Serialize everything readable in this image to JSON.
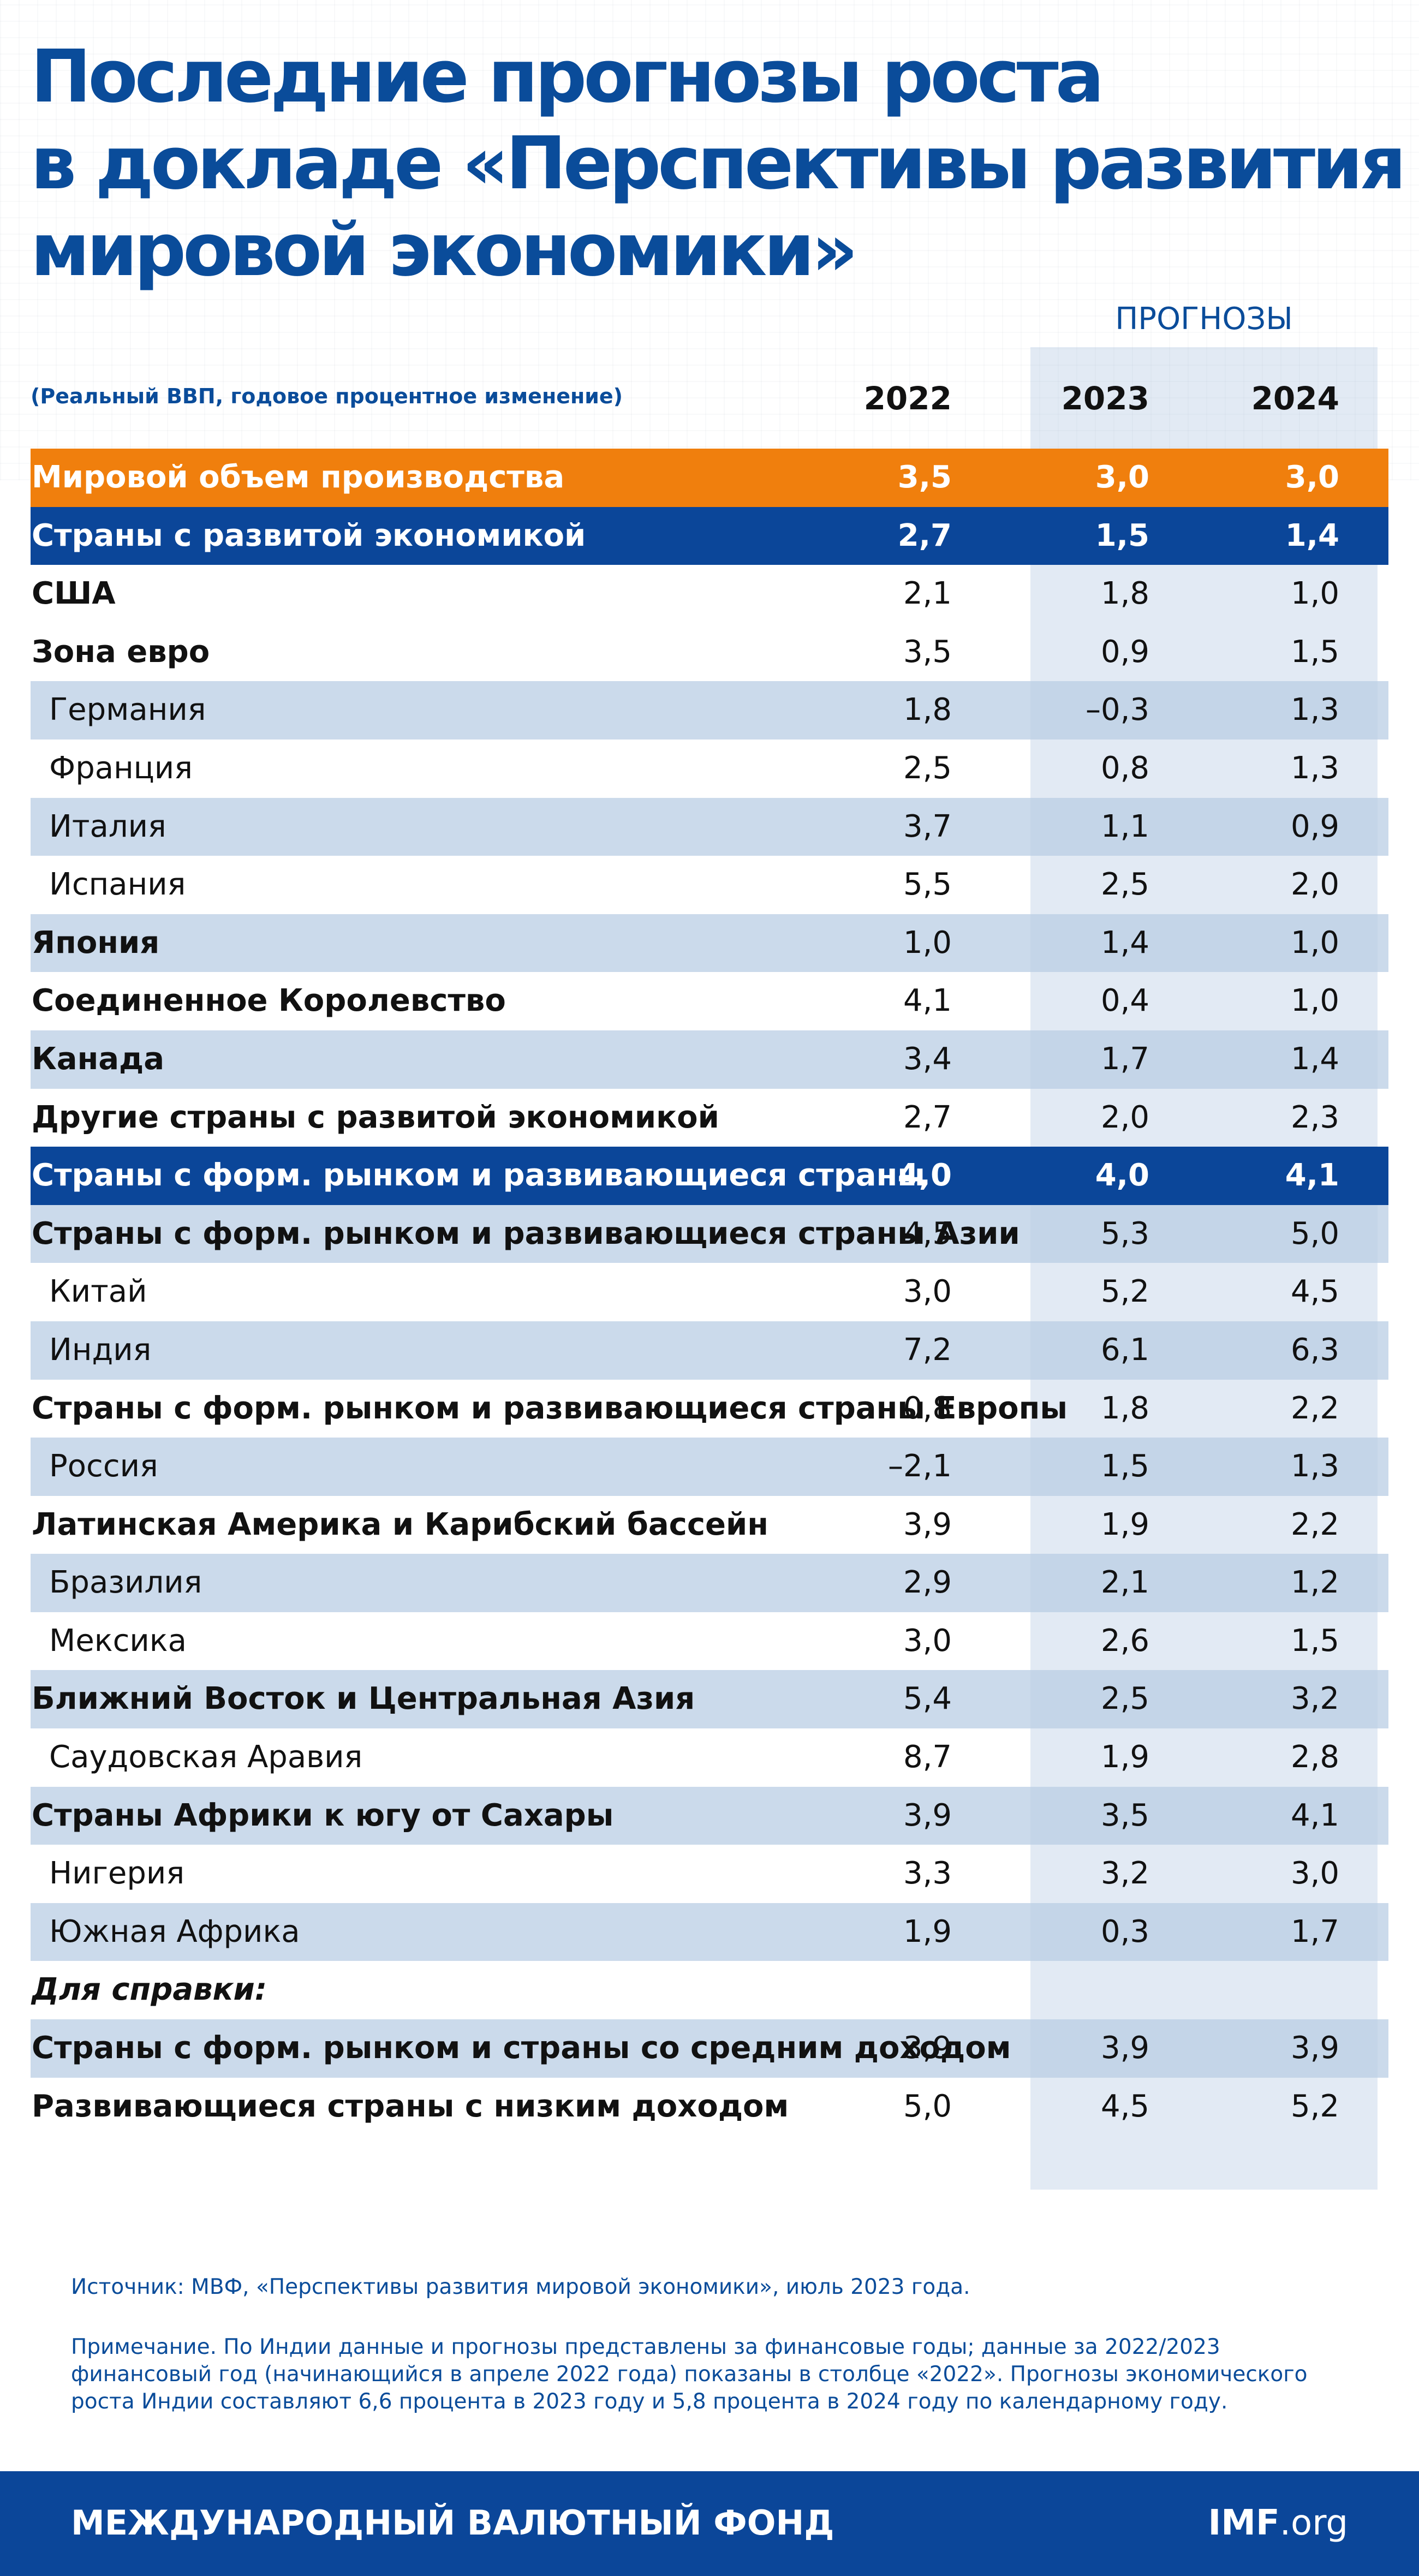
{
  "title_lines": [
    "Последние прогнозы роста",
    "в докладе «Перспективы развития",
    "мировой экономики»"
  ],
  "forecast_label": "ПРОГНОЗЫ",
  "subheading": "(Реальный ВВП, годовое процентное изменение)",
  "years": [
    "2022",
    "2023",
    "2024"
  ],
  "rows": [
    {
      "name": "Мировой объем производства",
      "v": [
        "3,5",
        "3,0",
        "3,0"
      ]
    },
    {
      "name": "Страны с развитой экономикой",
      "v": [
        "2,7",
        "1,5",
        "1,4"
      ]
    },
    {
      "name": "США",
      "v": [
        "2,1",
        "1,8",
        "1,0"
      ]
    },
    {
      "name": "Зона евро",
      "v": [
        "3,5",
        "0,9",
        "1,5"
      ]
    },
    {
      "name": "Германия",
      "v": [
        "1,8",
        "–0,3",
        "1,3"
      ]
    },
    {
      "name": "Франция",
      "v": [
        "2,5",
        "0,8",
        "1,3"
      ]
    },
    {
      "name": "Италия",
      "v": [
        "3,7",
        "1,1",
        "0,9"
      ]
    },
    {
      "name": "Испания",
      "v": [
        "5,5",
        "2,5",
        "2,0"
      ]
    },
    {
      "name": "Япония",
      "v": [
        "1,0",
        "1,4",
        "1,0"
      ]
    },
    {
      "name": "Соединенное Королевство",
      "v": [
        "4,1",
        "0,4",
        "1,0"
      ]
    },
    {
      "name": "Канада",
      "v": [
        "3,4",
        "1,7",
        "1,4"
      ]
    },
    {
      "name": "Другие страны с развитой экономикой",
      "v": [
        "2,7",
        "2,0",
        "2,3"
      ]
    },
    {
      "name": "Страны с форм. рынком и развивающиеся страны",
      "v": [
        "4,0",
        "4,0",
        "4,1"
      ]
    },
    {
      "name": "Страны с форм. рынком и развивающиеся страны Азии",
      "v": [
        "4,5",
        "5,3",
        "5,0"
      ]
    },
    {
      "name": "Китай",
      "v": [
        "3,0",
        "5,2",
        "4,5"
      ]
    },
    {
      "name": "Индия",
      "v": [
        "7,2",
        "6,1",
        "6,3"
      ]
    },
    {
      "name": "Страны с форм. рынком и развивающиеся страны Европы",
      "v": [
        "0,8",
        "1,8",
        "2,2"
      ]
    },
    {
      "name": "Россия",
      "v": [
        "–2,1",
        "1,5",
        "1,3"
      ]
    },
    {
      "name": "Латинская Америка и Карибский бассейн",
      "v": [
        "3,9",
        "1,9",
        "2,2"
      ]
    },
    {
      "name": "Бразилия",
      "v": [
        "2,9",
        "2,1",
        "1,2"
      ]
    },
    {
      "name": "Мексика",
      "v": [
        "3,0",
        "2,6",
        "1,5"
      ]
    },
    {
      "name": "Ближний Восток и Центральная Азия",
      "v": [
        "5,4",
        "2,5",
        "3,2"
      ]
    },
    {
      "name": "Саудовская Аравия",
      "v": [
        "8,7",
        "1,9",
        "2,8"
      ]
    },
    {
      "name": "Страны Африки к югу от Сахары",
      "v": [
        "3,9",
        "3,5",
        "4,1"
      ]
    },
    {
      "name": "Нигерия",
      "v": [
        "3,3",
        "3,2",
        "3,0"
      ]
    },
    {
      "name": "Южная Африка",
      "v": [
        "1,9",
        "0,3",
        "1,7"
      ]
    },
    {
      "name": "Для справки:",
      "v": [
        "",
        "",
        ""
      ]
    },
    {
      "name": "Страны с форм. рынком и страны со средним доходом",
      "v": [
        "3,9",
        "3,9",
        "3,9"
      ]
    },
    {
      "name": "Развивающиеся страны с низким доходом",
      "v": [
        "5,0",
        "4,5",
        "5,2"
      ]
    }
  ],
  "source": "Источник: МВФ, «Перспективы развития мировой экономики», июль 2023 года.",
  "note_lines": [
    "Примечание. По Индии данные и прогнозы представлены за финансовые годы; данные за 2022/2023",
    "финансовый год (начинающийся в апреле 2022 года) показаны в столбце «2022». Прогнозы экономического",
    "роста Индии составляют 6,6 процента в 2023 году и 5,8 процента в 2024 году по календарному году."
  ],
  "footer": {
    "org": "МЕЖДУНАРОДНЫЙ ВАЛЮТНЫЙ ФОНД",
    "site_bold": "IMF",
    "site_rest": ".org"
  },
  "colors": {
    "title": "#0a4c9a",
    "world_row": "#f07f0d",
    "group_row": "#0b4699",
    "shade": "#bacee4"
  }
}
